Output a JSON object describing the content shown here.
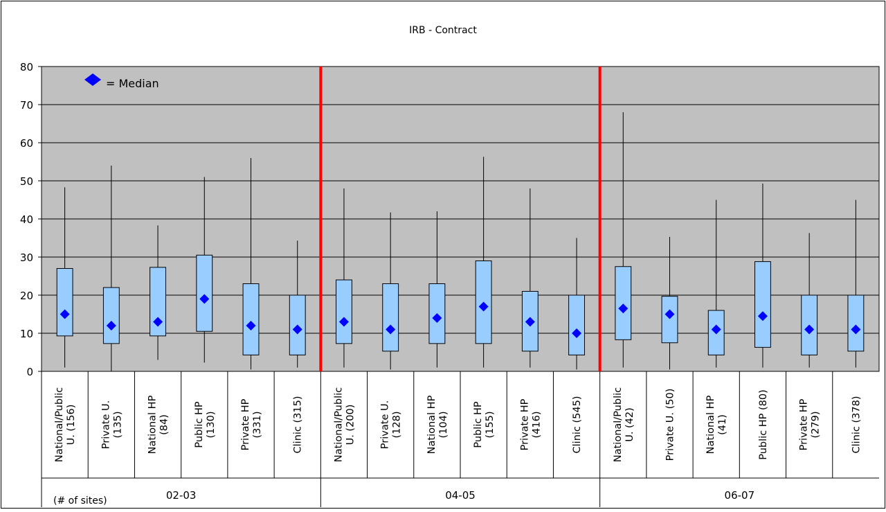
{
  "chart_data": {
    "type": "box",
    "title": "IRB - Contract",
    "ylim": [
      0,
      80
    ],
    "yticks": [
      0,
      10,
      20,
      30,
      40,
      50,
      60,
      70,
      80
    ],
    "grid": true,
    "legend": {
      "symbol_label": "= Median",
      "placement": "top-left"
    },
    "footnote": "(# of sites)",
    "plot_bg": "#c0c0c0",
    "box_color": "#99ccff",
    "median_color": "#0000ff",
    "divider_color": "#ff0000",
    "groups": [
      {
        "label": "02-03",
        "categories": [
          {
            "name": "National/Public U. (156)",
            "lines": [
              "National/Public",
              "U. (156)"
            ],
            "min": 1,
            "q1": 9.3,
            "median": 15,
            "q3": 27,
            "max": 48.3
          },
          {
            "name": "Private U. (135)",
            "lines": [
              "Private U.",
              "(135)"
            ],
            "min": 0,
            "q1": 7.3,
            "median": 12,
            "q3": 22,
            "max": 54
          },
          {
            "name": "National HP (84)",
            "lines": [
              "National HP",
              "(84)"
            ],
            "min": 3,
            "q1": 9.3,
            "median": 13,
            "q3": 27.3,
            "max": 38.3
          },
          {
            "name": "Public HP (130)",
            "lines": [
              "Public HP",
              "(130)"
            ],
            "min": 2.3,
            "q1": 10.5,
            "median": 19,
            "q3": 30.5,
            "max": 51
          },
          {
            "name": "Private HP (331)",
            "lines": [
              "Private HP",
              "(331)"
            ],
            "min": 0.5,
            "q1": 4.3,
            "median": 12,
            "q3": 23,
            "max": 56
          },
          {
            "name": "Clinic (315)",
            "lines": [
              "Clinic (315)"
            ],
            "min": 1,
            "q1": 4.3,
            "median": 11,
            "q3": 20,
            "max": 34.3
          }
        ]
      },
      {
        "label": "04-05",
        "categories": [
          {
            "name": "National/Public U. (200)",
            "lines": [
              "National/Public",
              "U. (200)"
            ],
            "min": 1,
            "q1": 7.3,
            "median": 13,
            "q3": 24,
            "max": 48
          },
          {
            "name": "Private U. (128)",
            "lines": [
              "Private U.",
              "(128)"
            ],
            "min": 0.5,
            "q1": 5.3,
            "median": 11,
            "q3": 23,
            "max": 41.7
          },
          {
            "name": "National HP (104)",
            "lines": [
              "National HP",
              "(104)"
            ],
            "min": 1,
            "q1": 7.3,
            "median": 14,
            "q3": 23,
            "max": 42
          },
          {
            "name": "Public HP (155)",
            "lines": [
              "Public HP",
              "(155)"
            ],
            "min": 1,
            "q1": 7.3,
            "median": 17,
            "q3": 29,
            "max": 56.3
          },
          {
            "name": "Private HP (416)",
            "lines": [
              "Private HP",
              "(416)"
            ],
            "min": 1,
            "q1": 5.3,
            "median": 13,
            "q3": 21,
            "max": 48
          },
          {
            "name": "Clinic (545)",
            "lines": [
              "Clinic (545)"
            ],
            "min": 0.5,
            "q1": 4.3,
            "median": 10,
            "q3": 20,
            "max": 35
          }
        ]
      },
      {
        "label": "06-07",
        "categories": [
          {
            "name": "National/Public U. (42)",
            "lines": [
              "National/Public",
              "U. (42)"
            ],
            "min": 1,
            "q1": 8.3,
            "median": 16.5,
            "q3": 27.5,
            "max": 68
          },
          {
            "name": "Private U. (50)",
            "lines": [
              "Private U. (50)"
            ],
            "min": 0.5,
            "q1": 7.5,
            "median": 15,
            "q3": 19.7,
            "max": 35.3
          },
          {
            "name": "National HP (41)",
            "lines": [
              "National HP",
              "(41)"
            ],
            "min": 1,
            "q1": 4.3,
            "median": 11,
            "q3": 16,
            "max": 45
          },
          {
            "name": "Public HP (80)",
            "lines": [
              "Public HP (80)"
            ],
            "min": 1,
            "q1": 6.3,
            "median": 14.5,
            "q3": 28.8,
            "max": 49.3
          },
          {
            "name": "Private HP (279)",
            "lines": [
              "Private HP",
              "(279)"
            ],
            "min": 1,
            "q1": 4.3,
            "median": 11,
            "q3": 20,
            "max": 36.3
          },
          {
            "name": "Clinic (378)",
            "lines": [
              "Clinic (378)"
            ],
            "min": 1,
            "q1": 5.3,
            "median": 11,
            "q3": 20,
            "max": 45
          }
        ]
      }
    ]
  }
}
